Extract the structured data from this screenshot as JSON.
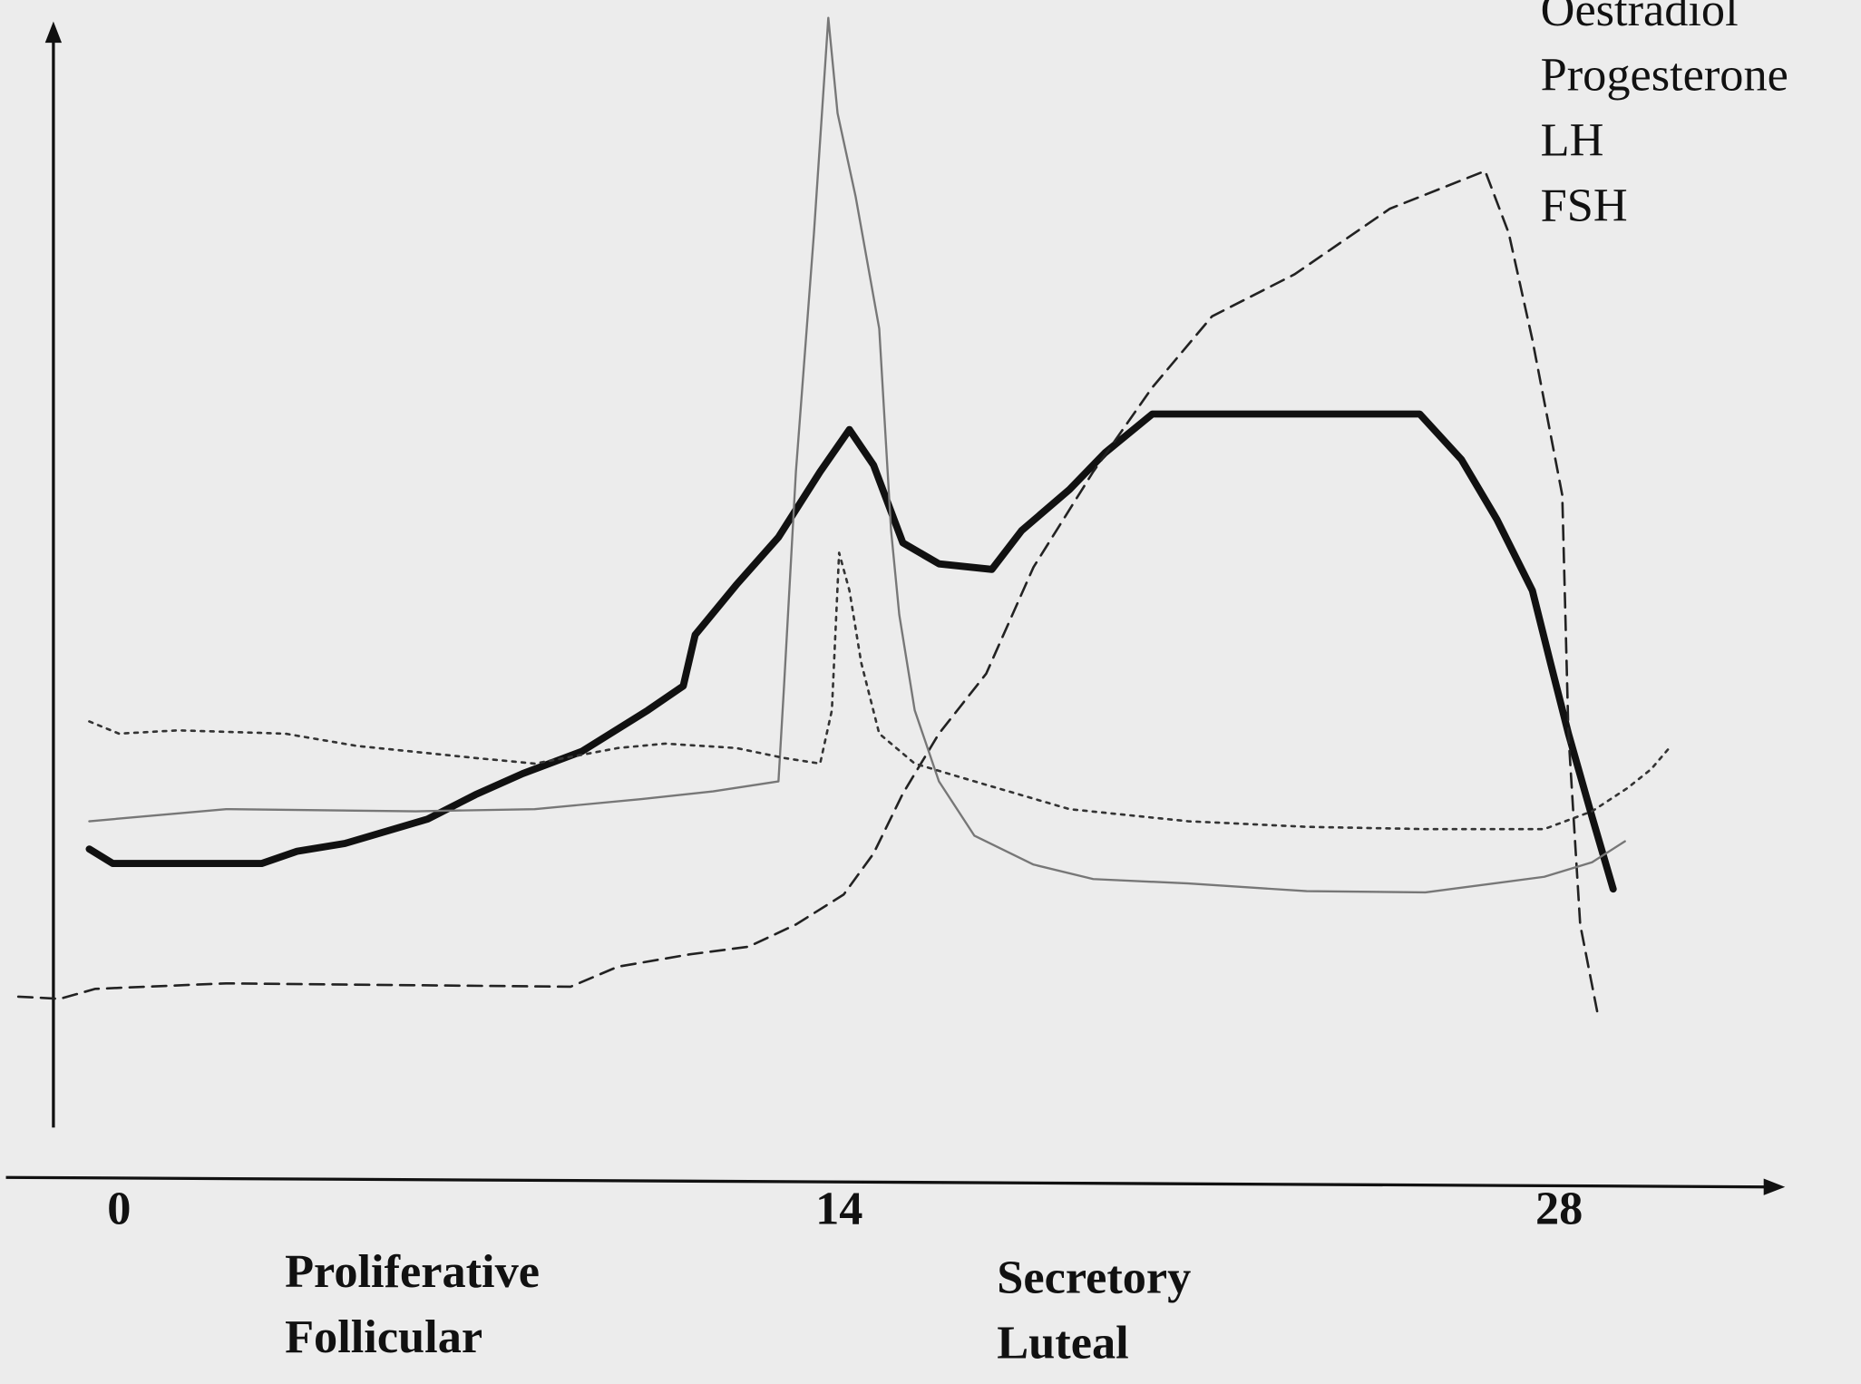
{
  "chart_data": {
    "type": "line",
    "xlim": [
      -2.2,
      32.3
    ],
    "xticks": [
      0,
      14,
      28
    ],
    "ylim": [
      0,
      100
    ],
    "annotations": [
      "Proliferative",
      "Follicular",
      "Secretory",
      "Luteal"
    ],
    "series": [
      {
        "name": "Oestradiol",
        "color": "#111111",
        "line_style": "solid",
        "line_width": 6,
        "x": [
          -0.58,
          -0.12,
          2.77,
          3.46,
          4.39,
          6.0,
          6.93,
          7.85,
          9.0,
          10.28,
          10.97,
          11.2,
          12.0,
          12.82,
          13.63,
          14.2,
          14.67,
          15.24,
          15.94,
          16.97,
          17.55,
          18.48,
          19.17,
          20.09,
          25.29,
          26.1,
          26.79,
          27.48,
          27.83,
          28.18,
          28.64,
          29.05
        ],
        "values": [
          25.1,
          23.8,
          23.8,
          24.9,
          25.6,
          27.8,
          30.0,
          31.9,
          33.9,
          37.6,
          39.8,
          44.4,
          48.9,
          53.2,
          59.1,
          62.9,
          59.7,
          52.7,
          50.8,
          50.3,
          53.8,
          57.5,
          60.8,
          64.3,
          64.3,
          60.2,
          54.8,
          48.4,
          41.9,
          35.5,
          28.0,
          21.5
        ]
      },
      {
        "name": "Progesterone",
        "color": "#222222",
        "line_style": "dashed",
        "line_width": 2,
        "x": [
          -1.96,
          -1.15,
          -0.46,
          2.08,
          8.78,
          9.7,
          11.09,
          12.24,
          13.16,
          14.09,
          14.67,
          15.24,
          15.94,
          16.86,
          17.78,
          18.94,
          20.09,
          21.25,
          22.86,
          24.71,
          26.56,
          27.02,
          27.48,
          28.06,
          28.18,
          28.41,
          28.75
        ],
        "values": [
          11.8,
          11.6,
          12.5,
          13.0,
          12.7,
          14.5,
          15.6,
          16.3,
          18.3,
          21.0,
          24.7,
          30.1,
          35.5,
          40.9,
          50.5,
          59.1,
          66.7,
          73.1,
          76.9,
          82.8,
          86.2,
          80.6,
          71.0,
          57.0,
          35.5,
          18.3,
          10.2
        ]
      },
      {
        "name": "LH",
        "color": "#777777",
        "line_style": "solid",
        "line_width": 1.8,
        "x": [
          -0.58,
          2.08,
          5.77,
          8.08,
          10.16,
          11.55,
          12.82,
          12.93,
          13.16,
          13.51,
          13.79,
          13.97,
          14.32,
          14.78,
          15.01,
          15.17,
          15.47,
          15.94,
          16.63,
          17.78,
          18.94,
          20.79,
          23.09,
          25.4,
          27.71,
          28.64,
          29.28
        ],
        "values": [
          27.6,
          28.7,
          28.5,
          28.7,
          29.6,
          30.3,
          31.2,
          39.8,
          59.1,
          80.6,
          100,
          91.4,
          83.9,
          72.0,
          53.8,
          46.2,
          37.6,
          31.2,
          26.3,
          23.7,
          22.4,
          22.0,
          21.3,
          21.2,
          22.6,
          23.9,
          25.8
        ]
      },
      {
        "name": "FSH",
        "color": "#333333",
        "line_style": "dotted",
        "line_width": 2,
        "x": [
          -0.58,
          0,
          1.15,
          3.23,
          4.62,
          6.93,
          8.08,
          9.7,
          10.62,
          12.0,
          12.93,
          13.63,
          13.86,
          14.0,
          14.2,
          14.43,
          14.78,
          15.47,
          16.63,
          18.48,
          20.79,
          23.09,
          25.4,
          27.71,
          28.64,
          29.33,
          29.79,
          30.14
        ],
        "values": [
          36.6,
          35.5,
          35.8,
          35.5,
          34.4,
          33.3,
          32.8,
          34.2,
          34.6,
          34.2,
          33.3,
          32.8,
          37.6,
          51.8,
          48.4,
          41.9,
          35.5,
          32.8,
          31.2,
          28.7,
          27.6,
          27.1,
          26.9,
          26.9,
          28.5,
          30.6,
          32.3,
          34.2
        ]
      }
    ]
  }
}
